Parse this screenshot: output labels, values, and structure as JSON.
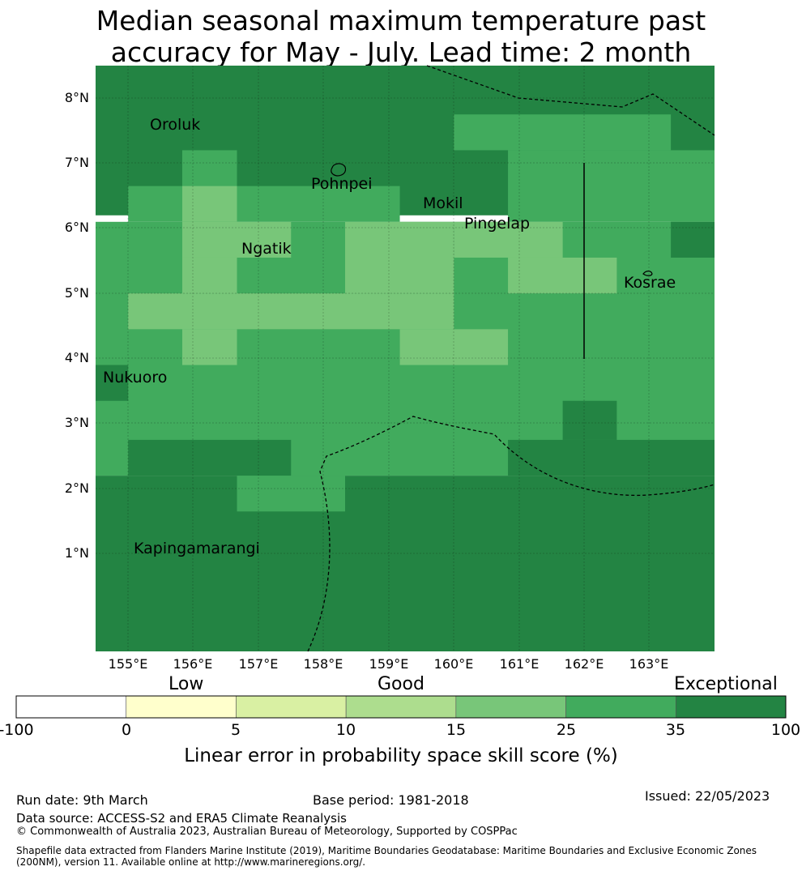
{
  "title": {
    "line1": "Median seasonal maximum temperature past",
    "line2": "accuracy for May - July. Lead time: 2 month"
  },
  "map": {
    "lat_labels": [
      "8°N",
      "7°N",
      "6°N",
      "5°N",
      "4°N",
      "3°N",
      "2°N",
      "1°N"
    ],
    "lon_labels": [
      "155°E",
      "156°E",
      "157°E",
      "158°E",
      "159°E",
      "160°E",
      "161°E",
      "162°E",
      "163°E"
    ],
    "places": {
      "oroluk": "Oroluk",
      "pohnpei": "Pohnpei",
      "mokil": "Mokil",
      "pingelap": "Pingelap",
      "ngatik": "Ngatik",
      "kosrae": "Kosrae",
      "nukuoro": "Nukuoro",
      "kapingamarangi": "Kapingamarangi"
    },
    "grid_lon_start": 154.5,
    "grid_lat_top": 8.5,
    "grid_step_lon": 0.8333,
    "grid_step_lat": 0.5556,
    "cells": [
      "FFFFFFFFFFFFFFFFFFFFFFFFFFFFFFFFF",
      "FFFFFFFFFFFFFFFFFFFFFFFFFFFFFFFFF",
      "FFFFFFFFFFFFFFFFFFFFFFFFFFFFFFFFF",
      "FFFFFFFFFFFFFFFFFFFFFFFFFFFFFFFFF",
      "FFFFFFFFFFFFFFFFFFFFFFFFFFFFFFFFF"
    ],
    "cell_rows": [
      "DDDDDDDDDDDDDDDDD",
      "DDDDDDDDDDDDDDDDD",
      "DDDDDDDDDDDDDDDDD",
      "DDDDDDDDDDDDCCCCCCCCCDD",
      "DDDDDCCDDDDDDDDDDCCCCCCCCCCCCCDD",
      "DCCCCBBCCCCCCDDDCCCCCCCCCCCC",
      "CCCCBBBBCCCBBBBBBBBCCCCCCCCCCDD",
      "CCCCBBCCCCCBBBBBBBBBBBCCCCCCCCCC",
      "CCCBBBBBBBBBBBBBBBCCCCCCCCCCCCCC",
      "CCCCBBCCCCCCCBBBBCCCCCCCCCCCCCCC",
      "DCCCCCCCCCCCCCCCCCCCCCCCCCCCCCCC",
      "CCCCCCCCCCCCCCCCCCCCCCCCDDDDCCCCCC",
      "CDDDDDDDDCCCCCCCCCCCCDDDDDDDDDDDDD",
      "DDDDDDDCCCCCCDDDDDDDDDDDDDDDDDDD"
    ],
    "zones": [
      {
        "lat_top": 8.5,
        "lat_bot": 6.2,
        "lon_l": 154.5,
        "lon_r": 164.0,
        "v": "D"
      },
      {
        "lat_top": 7.75,
        "lat_bot": 7.2,
        "lon_l": 160.0,
        "lon_r": 163.33,
        "v": "C"
      },
      {
        "lat_top": 7.2,
        "lat_bot": 6.65,
        "lon_l": 155.83,
        "lon_r": 156.67,
        "v": "C"
      },
      {
        "lat_top": 7.2,
        "lat_bot": 6.1,
        "lon_l": 160.83,
        "lon_r": 164.0,
        "v": "C"
      },
      {
        "lat_top": 6.65,
        "lat_bot": 6.1,
        "lon_l": 155.0,
        "lon_r": 159.17,
        "v": "C"
      },
      {
        "lat_top": 6.65,
        "lat_bot": 5.55,
        "lon_l": 155.83,
        "lon_r": 156.67,
        "v": "B"
      },
      {
        "lat_top": 6.1,
        "lat_bot": 2.2,
        "lon_l": 154.5,
        "lon_r": 164.0,
        "v": "C"
      },
      {
        "lat_top": 6.1,
        "lat_bot": 5.55,
        "lon_l": 155.83,
        "lon_r": 157.5,
        "v": "B"
      },
      {
        "lat_top": 6.1,
        "lat_bot": 5.0,
        "lon_l": 158.33,
        "lon_r": 160.0,
        "v": "B"
      },
      {
        "lat_top": 6.1,
        "lat_bot": 5.55,
        "lon_l": 160.0,
        "lon_r": 161.67,
        "v": "B"
      },
      {
        "lat_top": 5.55,
        "lat_bot": 5.0,
        "lon_l": 160.83,
        "lon_r": 162.5,
        "v": "B"
      },
      {
        "lat_top": 5.55,
        "lat_bot": 5.0,
        "lon_l": 155.83,
        "lon_r": 156.67,
        "v": "B"
      },
      {
        "lat_top": 5.0,
        "lat_bot": 4.45,
        "lon_l": 155.0,
        "lon_r": 160.0,
        "v": "B"
      },
      {
        "lat_top": 4.45,
        "lat_bot": 3.9,
        "lon_l": 155.83,
        "lon_r": 156.67,
        "v": "B"
      },
      {
        "lat_top": 4.45,
        "lat_bot": 3.9,
        "lon_l": 159.17,
        "lon_r": 160.83,
        "v": "B"
      },
      {
        "lat_top": 6.1,
        "lat_bot": 5.55,
        "lon_l": 163.33,
        "lon_r": 164.0,
        "v": "D"
      },
      {
        "lat_top": 3.9,
        "lat_bot": 3.35,
        "lon_l": 154.5,
        "lon_r": 155.0,
        "v": "D"
      },
      {
        "lat_top": 3.35,
        "lat_bot": 2.75,
        "lon_l": 161.67,
        "lon_r": 162.5,
        "v": "D"
      },
      {
        "lat_top": 2.75,
        "lat_bot": 2.2,
        "lon_l": 155.0,
        "lon_r": 157.5,
        "v": "D"
      },
      {
        "lat_top": 2.75,
        "lat_bot": 2.2,
        "lon_l": 160.83,
        "lon_r": 164.0,
        "v": "D"
      },
      {
        "lat_top": 2.2,
        "lat_bot": -0.5,
        "lon_l": 154.5,
        "lon_r": 164.0,
        "v": "D"
      },
      {
        "lat_top": 2.2,
        "lat_bot": 1.65,
        "lon_l": 156.67,
        "lon_r": 158.33,
        "v": "C"
      }
    ]
  },
  "colorbar": {
    "categories": {
      "low": "Low",
      "good": "Good",
      "exceptional": "Exceptional"
    },
    "ticks": [
      "-100",
      "0",
      "5",
      "10",
      "15",
      "25",
      "35",
      "100"
    ],
    "colors": [
      "#ffffff",
      "#ffffcc",
      "#d9f0a3",
      "#addd8e",
      "#78c679",
      "#41ab5d",
      "#238443"
    ],
    "label": "Linear error in probability space skill score (%)"
  },
  "footer": {
    "run_date": "Run date: 9th March",
    "base_period": "Base period: 1981-2018",
    "issued": "Issued: 22/05/2023",
    "data_source": "Data source: ACCESS-S2 and ERA5 Climate Reanalysis",
    "copyright": "© Commonwealth of Australia 2023, Australian Bureau of Meteorology, Supported by COSPPac",
    "shapefile_line1": "Shapefile data extracted from Flanders Marine Institute (2019), Maritime Boundaries Geodatabase: Maritime Boundaries and Exclusive Economic Zones",
    "shapefile_line2": "(200NM), version 11. Available online at http://www.marineregions.org/."
  }
}
